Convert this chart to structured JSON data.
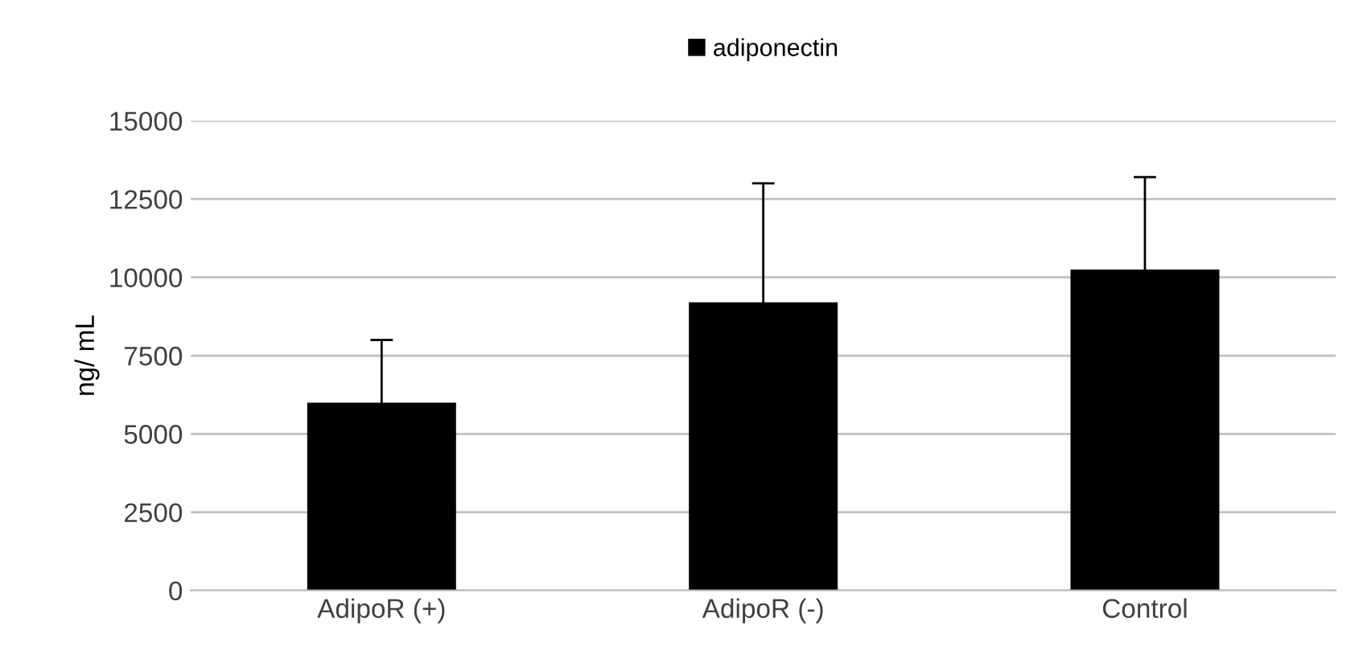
{
  "chart_data": {
    "type": "bar",
    "ylabel": "ng/ mL",
    "categories": [
      "AdipoR (+)",
      "AdipoR (-)",
      "Control"
    ],
    "series": [
      {
        "name": "adiponectin",
        "color": "#000000",
        "values": [
          6000,
          9200,
          10250
        ],
        "errors": [
          2000,
          3800,
          2950
        ]
      }
    ],
    "ylim": [
      0,
      15000
    ],
    "yticks": [
      0,
      2500,
      5000,
      7500,
      10000,
      12500,
      15000
    ],
    "grid": "y",
    "legend": "top"
  }
}
